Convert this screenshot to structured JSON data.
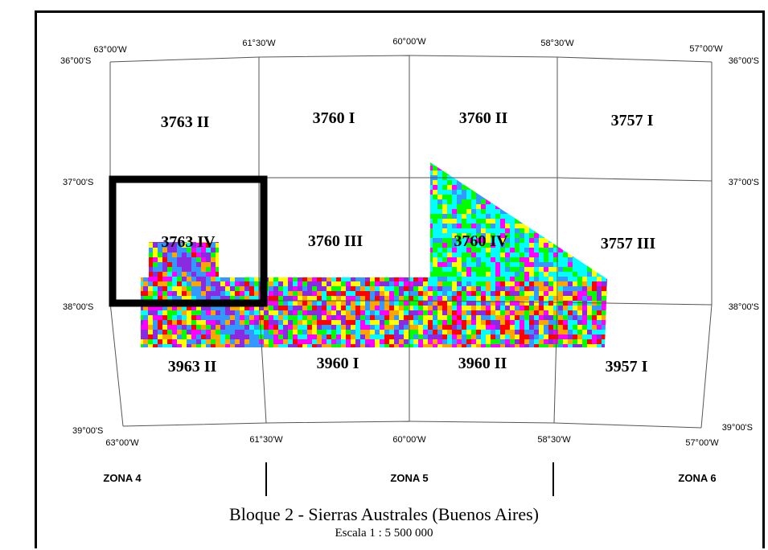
{
  "map": {
    "lon_top": [
      "63°00'W",
      "61°30'W",
      "60°00'W",
      "58°30'W",
      "57°00'W"
    ],
    "lon_bottom": [
      "63°00'W",
      "61°30'W",
      "60°00'W",
      "58°30'W",
      "57°00'W"
    ],
    "lat_left": [
      "36°00'S",
      "37°00'S",
      "38°00'S",
      "39°00'S"
    ],
    "lat_right": [
      "36°00'S",
      "37°00'S",
      "38°00'S",
      "39°00'S"
    ],
    "sheets": [
      {
        "id": "3763 II"
      },
      {
        "id": "3760 I"
      },
      {
        "id": "3760 II"
      },
      {
        "id": "3757 I"
      },
      {
        "id": "3763 IV"
      },
      {
        "id": "3760 III"
      },
      {
        "id": "3760 IV"
      },
      {
        "id": "3757 III"
      },
      {
        "id": "3963 II"
      },
      {
        "id": "3960 I"
      },
      {
        "id": "3960 II"
      },
      {
        "id": "3957 I"
      }
    ],
    "zones": [
      "ZONA 4",
      "ZONA 5",
      "ZONA 6"
    ],
    "title": "Bloque 2 - Sierras Australes (Buenos Aires)",
    "scale": "Escala 1 : 5 500 000",
    "colors": {
      "raster": [
        "#ff00ff",
        "#ffff00",
        "#00ffff",
        "#00ff00",
        "#ff0000",
        "#8a2be2",
        "#ffa500",
        "#3399ff"
      ],
      "highlight_box": "#000000",
      "grid": "#555555"
    }
  }
}
